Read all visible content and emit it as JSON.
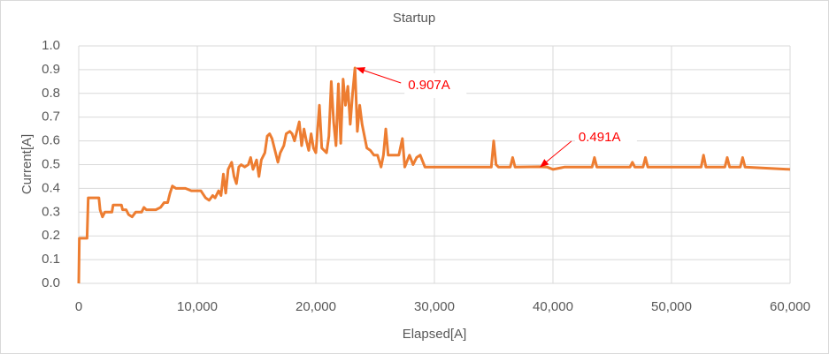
{
  "chart_data": {
    "type": "line",
    "title": "Startup",
    "x_label": "Elapsed[A]",
    "y_label": "Current[A]",
    "xlim": [
      0,
      60000
    ],
    "ylim": [
      0,
      1.0
    ],
    "xticks": [
      0,
      {
        "value": 10000,
        "label": "10,000"
      },
      {
        "value": 20000,
        "label": "20,000"
      },
      {
        "value": 30000,
        "label": "30,000"
      },
      {
        "value": 40000,
        "label": "40,000"
      },
      {
        "value": 50000,
        "label": "50,000"
      },
      {
        "value": 60000,
        "label": "60,000"
      }
    ],
    "yticks": [
      {
        "value": 0,
        "label": "0.0"
      },
      0.1,
      0.2,
      0.3,
      0.4,
      0.5,
      0.6,
      0.7,
      0.8,
      0.9,
      {
        "value": 1.0,
        "label": "1.0"
      }
    ],
    "grid": true,
    "series": [
      {
        "color": "#ed7d31",
        "x": [
          0,
          50,
          700,
          800,
          1700,
          1800,
          2000,
          2200,
          2800,
          2900,
          3600,
          3700,
          4000,
          4200,
          4500,
          4800,
          5300,
          5500,
          5700,
          6500,
          6900,
          7200,
          7500,
          7700,
          7900,
          8200,
          9000,
          9500,
          10300,
          10700,
          11000,
          11300,
          11500,
          11800,
          12000,
          12200,
          12400,
          12600,
          12900,
          13100,
          13300,
          13500,
          13700,
          14000,
          14300,
          14500,
          14700,
          15000,
          15200,
          15400,
          15700,
          15900,
          16100,
          16300,
          16600,
          16800,
          17000,
          17300,
          17500,
          17800,
          18000,
          18200,
          18400,
          18600,
          18800,
          19000,
          19200,
          19400,
          19600,
          19800,
          20000,
          20300,
          20500,
          20900,
          21100,
          21300,
          21500,
          21700,
          21900,
          22100,
          22300,
          22500,
          22700,
          22900,
          23100,
          23300,
          23500,
          23700,
          23900,
          24300,
          24600,
          24900,
          25200,
          25500,
          25700,
          25900,
          26100,
          27000,
          27300,
          27500,
          27900,
          28200,
          28500,
          28800,
          29200,
          30000,
          34800,
          35000,
          35200,
          35400,
          36400,
          36600,
          36800,
          38800,
          39500,
          40000,
          41000,
          43300,
          43500,
          43700,
          46500,
          46700,
          46900,
          47600,
          47800,
          48000,
          52500,
          52700,
          52900,
          54500,
          54700,
          54900,
          55800,
          56000,
          56200,
          60000
        ],
        "values": [
          0,
          0.19,
          0.19,
          0.36,
          0.36,
          0.31,
          0.28,
          0.3,
          0.3,
          0.33,
          0.33,
          0.31,
          0.31,
          0.29,
          0.28,
          0.3,
          0.3,
          0.32,
          0.31,
          0.31,
          0.32,
          0.34,
          0.34,
          0.38,
          0.41,
          0.4,
          0.4,
          0.39,
          0.39,
          0.36,
          0.35,
          0.37,
          0.36,
          0.39,
          0.37,
          0.46,
          0.38,
          0.48,
          0.51,
          0.45,
          0.42,
          0.49,
          0.5,
          0.49,
          0.5,
          0.53,
          0.48,
          0.52,
          0.45,
          0.52,
          0.55,
          0.62,
          0.63,
          0.61,
          0.55,
          0.51,
          0.55,
          0.58,
          0.63,
          0.64,
          0.63,
          0.6,
          0.64,
          0.68,
          0.58,
          0.65,
          0.6,
          0.56,
          0.63,
          0.57,
          0.55,
          0.75,
          0.57,
          0.55,
          0.62,
          0.85,
          0.68,
          0.58,
          0.84,
          0.59,
          0.86,
          0.75,
          0.83,
          0.67,
          0.8,
          0.907,
          0.64,
          0.75,
          0.67,
          0.57,
          0.56,
          0.54,
          0.54,
          0.49,
          0.54,
          0.65,
          0.54,
          0.54,
          0.61,
          0.49,
          0.54,
          0.5,
          0.53,
          0.54,
          0.49,
          0.49,
          0.49,
          0.6,
          0.5,
          0.49,
          0.49,
          0.53,
          0.49,
          0.491,
          0.49,
          0.48,
          0.49,
          0.49,
          0.53,
          0.49,
          0.49,
          0.51,
          0.49,
          0.49,
          0.53,
          0.49,
          0.49,
          0.54,
          0.49,
          0.49,
          0.53,
          0.49,
          0.49,
          0.53,
          0.49,
          0.48
        ]
      }
    ],
    "annotations": [
      {
        "text": "0.907A",
        "x": 23300,
        "y": 0.907
      },
      {
        "text": "0.491A",
        "x": 38800,
        "y": 0.491
      }
    ]
  }
}
